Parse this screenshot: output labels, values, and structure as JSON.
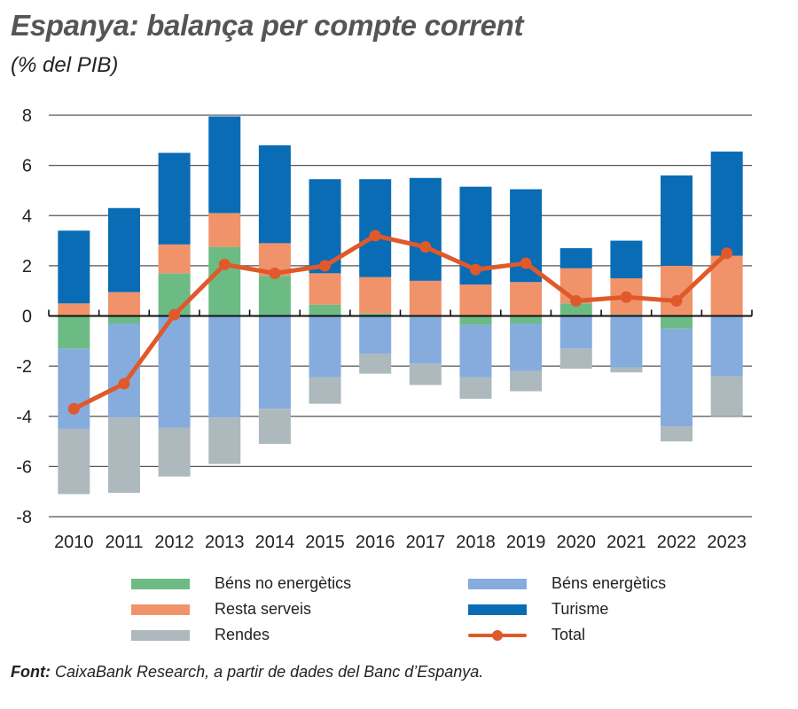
{
  "header": {
    "title": "Espanya: balança per compte corrent",
    "subtitle": "(% del PIB)"
  },
  "footer": {
    "source_label": "Font:",
    "source_text": "CaixaBank Research, a partir de dades del Banc d’Espanya."
  },
  "colors": {
    "bens_no_energetics": "#6dbb84",
    "bens_energetics": "#86acde",
    "resta_serveis": "#f0936a",
    "turisme": "#0a6cb5",
    "rendes": "#adb9bd",
    "total": "#e0592a",
    "grid": "#555555"
  },
  "legend": [
    {
      "key": "bens_no_energetics",
      "label": "Béns no energètics",
      "kind": "bar"
    },
    {
      "key": "bens_energetics",
      "label": "Béns energètics",
      "kind": "bar"
    },
    {
      "key": "resta_serveis",
      "label": "Resta serveis",
      "kind": "bar"
    },
    {
      "key": "turisme",
      "label": "Turisme",
      "kind": "bar"
    },
    {
      "key": "rendes",
      "label": "Rendes",
      "kind": "bar"
    },
    {
      "key": "total",
      "label": "Total",
      "kind": "line"
    }
  ],
  "chart_data": {
    "type": "bar",
    "stacked": true,
    "title": "Espanya: balança per compte corrent",
    "subtitle": "(% del PIB)",
    "xlabel": "",
    "ylabel": "% del PIB",
    "ylim": [
      -8,
      8
    ],
    "yticks": [
      8,
      6,
      4,
      2,
      0,
      -2,
      -4,
      -6,
      -8
    ],
    "grid": true,
    "legend_position": "bottom",
    "categories": [
      "2010",
      "2011",
      "2012",
      "2013",
      "2014",
      "2015",
      "2016",
      "2017",
      "2018",
      "2019",
      "2020",
      "2021",
      "2022",
      "2023"
    ],
    "series": [
      {
        "key": "bens_no_energetics",
        "name": "Béns no energètics",
        "type": "bar",
        "values": [
          -1.3,
          -0.3,
          1.7,
          2.75,
          1.6,
          0.45,
          0.1,
          -0.05,
          -0.35,
          -0.3,
          0.5,
          0.05,
          -0.5,
          0.0
        ]
      },
      {
        "key": "resta_serveis",
        "name": "Resta serveis",
        "type": "bar",
        "values": [
          0.5,
          0.95,
          1.15,
          1.35,
          1.3,
          1.25,
          1.45,
          1.4,
          1.25,
          1.35,
          1.4,
          1.45,
          2.0,
          2.4
        ]
      },
      {
        "key": "turisme",
        "name": "Turisme",
        "type": "bar",
        "values": [
          2.9,
          3.35,
          3.65,
          3.85,
          3.9,
          3.75,
          3.9,
          4.1,
          3.9,
          3.7,
          0.8,
          1.5,
          3.6,
          4.15
        ]
      },
      {
        "key": "bens_energetics",
        "name": "Béns energètics",
        "type": "bar",
        "values": [
          -3.2,
          -3.75,
          -4.45,
          -4.05,
          -3.7,
          -2.45,
          -1.5,
          -1.85,
          -2.1,
          -1.9,
          -1.3,
          -2.05,
          -3.9,
          -2.4
        ]
      },
      {
        "key": "rendes",
        "name": "Rendes",
        "type": "bar",
        "values": [
          -2.6,
          -3.0,
          -1.95,
          -1.85,
          -1.4,
          -1.05,
          -0.8,
          -0.85,
          -0.85,
          -0.8,
          -0.8,
          -0.2,
          -0.6,
          -1.6
        ]
      },
      {
        "key": "total",
        "name": "Total",
        "type": "line",
        "values": [
          -3.7,
          -2.7,
          0.05,
          2.05,
          1.7,
          2.0,
          3.2,
          2.75,
          1.85,
          2.1,
          0.6,
          0.75,
          0.6,
          2.5
        ]
      }
    ]
  }
}
